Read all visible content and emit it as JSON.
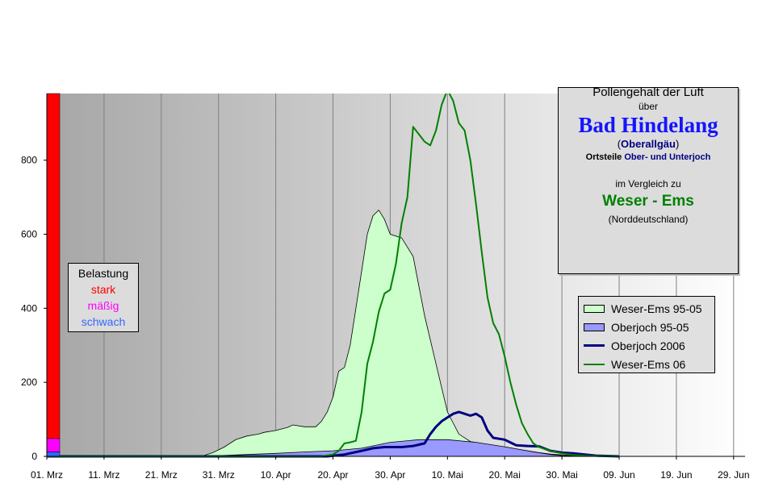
{
  "chart_data": {
    "type": "area",
    "title": "Pollengehalt der Luft",
    "x_tick_labels": [
      "01. Mrz",
      "11. Mrz",
      "21. Mrz",
      "31. Mrz",
      "10. Apr",
      "20. Apr",
      "30. Apr",
      "10. Mai",
      "20. Mai",
      "30. Mai",
      "09. Jun",
      "19. Jun",
      "29. Jun"
    ],
    "y_tick_labels": [
      "0",
      "200",
      "400",
      "600",
      "800"
    ],
    "ylim": [
      0,
      980
    ],
    "xlim_days": [
      0,
      122
    ],
    "grid": "vertical",
    "legend_placement": "right",
    "belastung_bar": {
      "schwach": 12,
      "maessig": 48,
      "stark": 980
    },
    "series": [
      {
        "name": "Weser-Ems 95-05",
        "type": "area",
        "color": "#ccffcc",
        "x": [
          0,
          27,
          29,
          31,
          33,
          35,
          37,
          38,
          40,
          42,
          43,
          45,
          47,
          48,
          49,
          50,
          51,
          52,
          53,
          54,
          55,
          56,
          57,
          58,
          59,
          60,
          62,
          64,
          66,
          68,
          70,
          72,
          74,
          76,
          78,
          80,
          82,
          84,
          86,
          88,
          90,
          95,
          100
        ],
        "y": [
          0,
          0,
          10,
          25,
          45,
          55,
          60,
          65,
          70,
          78,
          85,
          80,
          80,
          95,
          120,
          160,
          230,
          240,
          300,
          400,
          500,
          600,
          650,
          665,
          640,
          600,
          590,
          540,
          380,
          250,
          120,
          60,
          40,
          35,
          30,
          25,
          20,
          15,
          10,
          6,
          4,
          2,
          0
        ]
      },
      {
        "name": "Oberjoch 95-05",
        "type": "area",
        "color": "#9999ff",
        "x": [
          0,
          27,
          35,
          40,
          45,
          50,
          55,
          60,
          65,
          70,
          75,
          80,
          85,
          88,
          90,
          95
        ],
        "y": [
          0,
          0,
          5,
          8,
          12,
          15,
          22,
          38,
          45,
          45,
          38,
          26,
          12,
          5,
          2,
          0
        ]
      },
      {
        "name": "Oberjoch 2006",
        "type": "line",
        "color": "#000080",
        "x": [
          0,
          49,
          52,
          55,
          57,
          59,
          62,
          64,
          66,
          67,
          68,
          69,
          70,
          71,
          72,
          73,
          74,
          75,
          76,
          77,
          78,
          80,
          82,
          84,
          86,
          88,
          90,
          92,
          94,
          96,
          100
        ],
        "y": [
          0,
          0,
          5,
          15,
          22,
          25,
          25,
          28,
          35,
          60,
          80,
          95,
          105,
          115,
          120,
          115,
          110,
          115,
          105,
          70,
          50,
          45,
          30,
          28,
          27,
          15,
          10,
          8,
          5,
          2,
          0
        ]
      },
      {
        "name": "Weser-Ems 06",
        "type": "line",
        "color": "#008000",
        "x": [
          0,
          48,
          50,
          51,
          52,
          53,
          54,
          55,
          56,
          57,
          58,
          59,
          60,
          61,
          62,
          63,
          64,
          65,
          66,
          67,
          68,
          69,
          70,
          71,
          72,
          73,
          74,
          75,
          76,
          77,
          78,
          79,
          80,
          81,
          82,
          83,
          84,
          85,
          86,
          88,
          90,
          92,
          94,
          96,
          100
        ],
        "y": [
          0,
          0,
          5,
          15,
          35,
          38,
          42,
          120,
          250,
          310,
          390,
          440,
          450,
          520,
          630,
          700,
          890,
          870,
          850,
          840,
          880,
          950,
          990,
          960,
          900,
          880,
          800,
          680,
          550,
          430,
          360,
          330,
          270,
          200,
          140,
          90,
          60,
          35,
          25,
          15,
          8,
          4,
          2,
          1,
          0
        ]
      }
    ]
  },
  "infobox": {
    "title": "Pollengehalt der Luft",
    "ueber": "über",
    "place": "Bad Hindelang",
    "region_open": "(",
    "region": "Oberallgäu",
    "region_close": ")",
    "sub_label": "Ortsteile",
    "sub_value": "Ober- und Unterjoch",
    "compare": "im Vergleich zu",
    "place2": "Weser - Ems",
    "region2": "(Norddeutschland)"
  },
  "belastung": {
    "title": "Belastung",
    "stark": "stark",
    "maessig": "mäßig",
    "schwach": "schwach",
    "colors": {
      "stark": "#ff0000",
      "maessig": "#ff00ff",
      "schwach": "#3366ff"
    }
  },
  "legend": [
    {
      "label": "Weser-Ems 95-05",
      "kind": "area",
      "color": "#ccffcc"
    },
    {
      "label": "Oberjoch 95-05",
      "kind": "area",
      "color": "#9999ff"
    },
    {
      "label": "Oberjoch 2006",
      "kind": "line",
      "color": "#000080"
    },
    {
      "label": "Weser-Ems 06",
      "kind": "line",
      "color": "#008000"
    }
  ]
}
